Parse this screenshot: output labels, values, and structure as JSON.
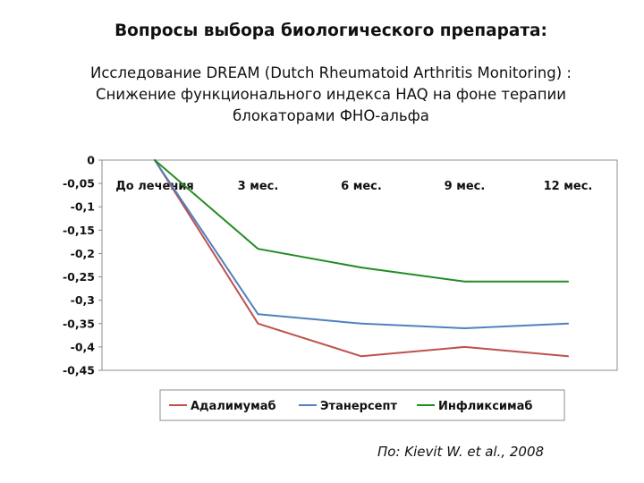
{
  "title": "Вопросы выбора биологического препарата:",
  "subtitle_lines": [
    "Исследование DREAM (Dutch Rheumatoid Arthritis Monitoring) :",
    "Снижение функционального индекса HAQ на фоне терапии",
    "блокаторами ФНО-альфа"
  ],
  "citation": "По: Kievit W. et al., 2008",
  "chart_data": {
    "type": "line",
    "title": "",
    "xlabel": "",
    "ylabel": "",
    "categories": [
      "До лечения",
      "3 мес.",
      "6 мес.",
      "9 мес.",
      "12 мес."
    ],
    "ylim": [
      -0.45,
      0
    ],
    "yticks": [
      0,
      -0.05,
      -0.1,
      -0.15,
      -0.2,
      -0.25,
      -0.3,
      -0.35,
      -0.4,
      -0.45
    ],
    "ytick_labels": [
      "0",
      "-0,05",
      "-0,1",
      "-0,15",
      "-0,2",
      "-0,25",
      "-0,3",
      "-0,35",
      "-0,4",
      "-0,45"
    ],
    "grid": false,
    "legend_position": "bottom",
    "series": [
      {
        "name": "Адалимумаб",
        "color": "#c0504d",
        "values": [
          0,
          -0.35,
          -0.42,
          -0.4,
          -0.42
        ]
      },
      {
        "name": "Этанерсепт",
        "color": "#4f81bd",
        "values": [
          0,
          -0.33,
          -0.35,
          -0.36,
          -0.35
        ]
      },
      {
        "name": "Инфликсимаб",
        "color": "#238b23",
        "values": [
          0,
          -0.19,
          -0.23,
          -0.26,
          -0.26
        ]
      }
    ]
  }
}
